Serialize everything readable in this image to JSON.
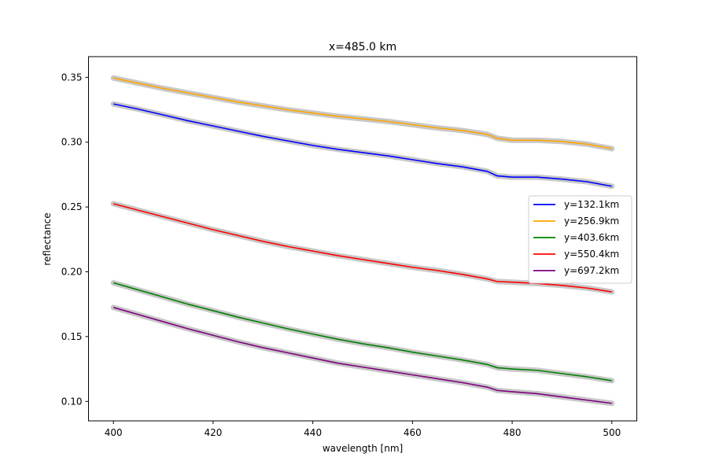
{
  "chart_data": {
    "type": "line",
    "title": "x=485.0 km",
    "xlabel": "wavelength [nm]",
    "ylabel": "reflectance",
    "xlim": [
      395,
      505
    ],
    "ylim": [
      0.085,
      0.366
    ],
    "xticks": [
      400,
      420,
      440,
      460,
      480,
      500
    ],
    "xtick_labels": [
      "400",
      "420",
      "440",
      "460",
      "480",
      "500"
    ],
    "yticks": [
      0.1,
      0.15,
      0.2,
      0.25,
      0.3,
      0.35
    ],
    "ytick_labels": [
      "0.10",
      "0.15",
      "0.20",
      "0.25",
      "0.30",
      "0.35"
    ],
    "grid": false,
    "legend_position": "center-right",
    "band_color": "#c8c8c8",
    "x": [
      400,
      405,
      410,
      415,
      420,
      425,
      430,
      435,
      440,
      445,
      450,
      455,
      460,
      465,
      470,
      475,
      477,
      480,
      485,
      490,
      495,
      500
    ],
    "series": [
      {
        "name": "y=132.1km",
        "color": "#0000ff",
        "values": [
          0.3295,
          0.3255,
          0.321,
          0.3165,
          0.3125,
          0.3085,
          0.3045,
          0.301,
          0.2975,
          0.2945,
          0.292,
          0.2895,
          0.2865,
          0.2835,
          0.281,
          0.2775,
          0.274,
          0.273,
          0.273,
          0.2715,
          0.2695,
          0.266
        ]
      },
      {
        "name": "y=256.9km",
        "color": "#ffa500",
        "values": [
          0.3495,
          0.3455,
          0.3415,
          0.338,
          0.3345,
          0.331,
          0.328,
          0.325,
          0.3225,
          0.32,
          0.318,
          0.316,
          0.3135,
          0.311,
          0.309,
          0.306,
          0.303,
          0.3015,
          0.3015,
          0.3005,
          0.2985,
          0.295
        ]
      },
      {
        "name": "y=403.6km",
        "color": "#008000",
        "values": [
          0.1915,
          0.186,
          0.1805,
          0.175,
          0.17,
          0.165,
          0.1605,
          0.156,
          0.152,
          0.148,
          0.1445,
          0.1415,
          0.138,
          0.135,
          0.132,
          0.1285,
          0.126,
          0.125,
          0.124,
          0.1215,
          0.119,
          0.116
        ]
      },
      {
        "name": "y=550.4km",
        "color": "#ff0000",
        "values": [
          0.2525,
          0.2475,
          0.2425,
          0.2375,
          0.2325,
          0.228,
          0.2235,
          0.2195,
          0.216,
          0.2125,
          0.2095,
          0.2065,
          0.2035,
          0.201,
          0.198,
          0.1945,
          0.1925,
          0.192,
          0.191,
          0.1895,
          0.1875,
          0.1845
        ]
      },
      {
        "name": "y=697.2km",
        "color": "#800080",
        "values": [
          0.1725,
          0.167,
          0.1615,
          0.156,
          0.151,
          0.146,
          0.1415,
          0.1375,
          0.1335,
          0.1295,
          0.1265,
          0.1235,
          0.1205,
          0.1175,
          0.1145,
          0.111,
          0.1085,
          0.1075,
          0.106,
          0.1035,
          0.101,
          0.0985
        ]
      }
    ]
  }
}
